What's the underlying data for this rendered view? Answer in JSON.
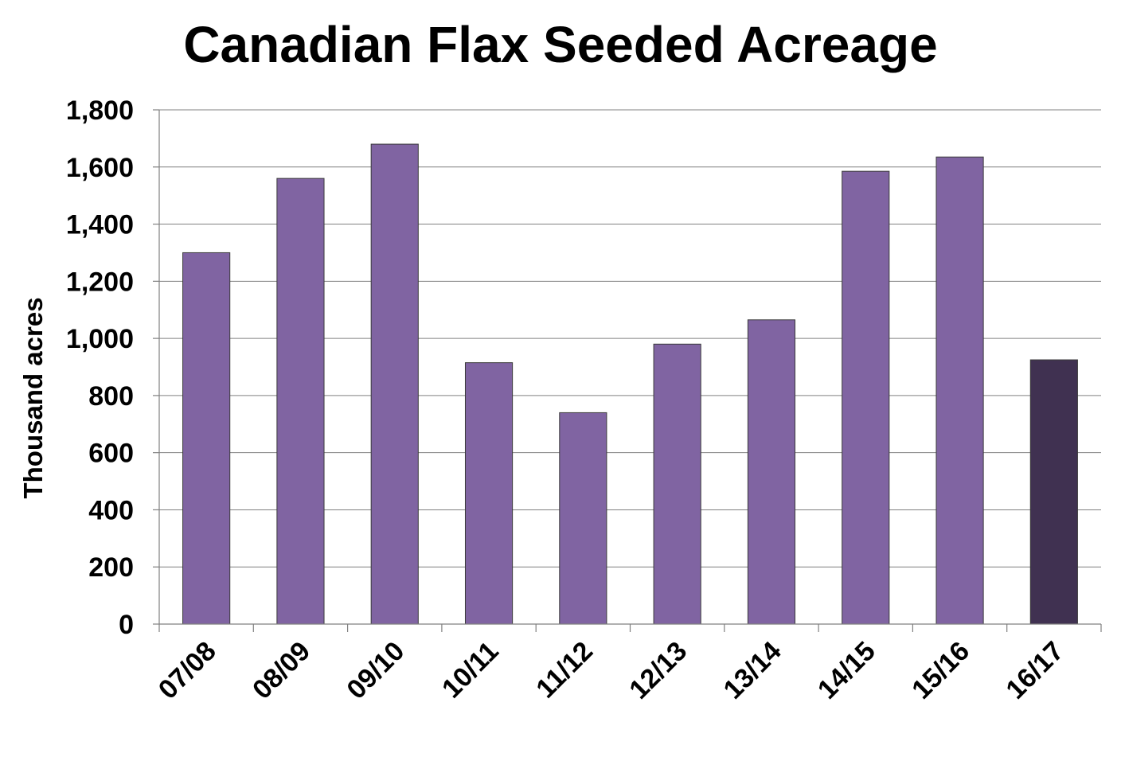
{
  "chart_data": {
    "type": "bar",
    "title": "Canadian Flax Seeded Acreage",
    "xlabel": "",
    "ylabel": "Thousand acres",
    "ylim": [
      0,
      1800
    ],
    "ytick_values": [
      0,
      200,
      400,
      600,
      800,
      1000,
      1200,
      1400,
      1600,
      1800
    ],
    "yticks": [
      "0",
      "200",
      "400",
      "600",
      "800",
      "1,000",
      "1,200",
      "1,400",
      "1,600",
      "1,800"
    ],
    "categories": [
      "07/08",
      "08/09",
      "09/10",
      "10/11",
      "11/12",
      "12/13",
      "13/14",
      "14/15",
      "15/16",
      "16/17"
    ],
    "values": [
      1300,
      1560,
      1680,
      915,
      740,
      980,
      1065,
      1585,
      1635,
      925
    ],
    "bar_colors": [
      "#8064a2",
      "#8064a2",
      "#8064a2",
      "#8064a2",
      "#8064a2",
      "#8064a2",
      "#8064a2",
      "#8064a2",
      "#8064a2",
      "#403151"
    ],
    "grid": true,
    "legend": "none"
  }
}
